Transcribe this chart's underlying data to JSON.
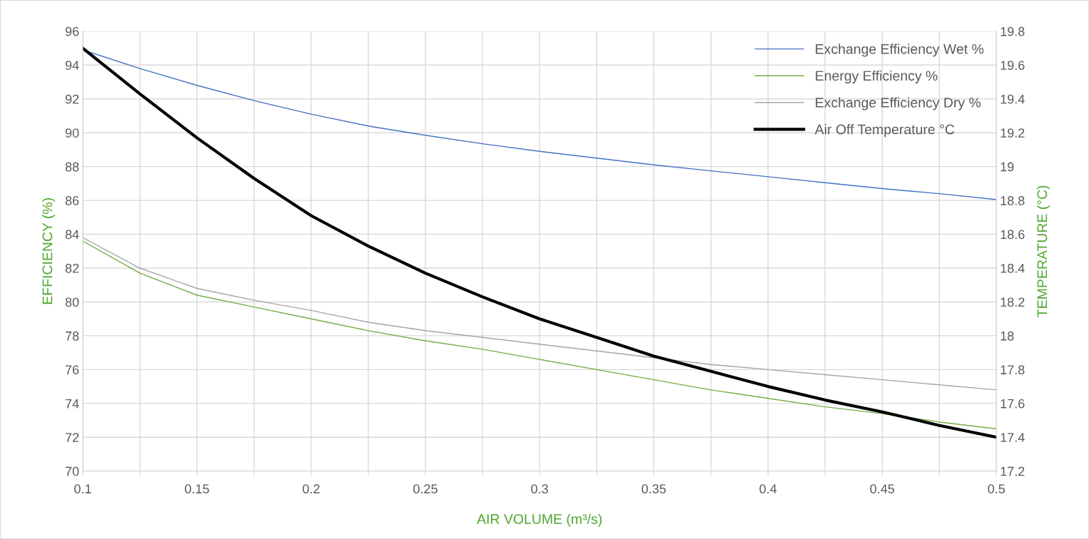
{
  "chart_data": {
    "type": "line",
    "xlabel": "AIR VOLUME (m³/s)",
    "ylabel": "EFFICIENCY (%)",
    "y2label": "TEMPERATURE (°C)",
    "x": [
      0.1,
      0.125,
      0.15,
      0.175,
      0.2,
      0.225,
      0.25,
      0.275,
      0.3,
      0.325,
      0.35,
      0.375,
      0.4,
      0.425,
      0.45,
      0.475,
      0.5
    ],
    "series": [
      {
        "name": "Exchange Efficiency Wet %",
        "color": "#4472c4",
        "values": [
          94.9,
          93.8,
          92.8,
          91.9,
          91.1,
          90.4,
          89.85,
          89.35,
          88.9,
          88.5,
          88.1,
          87.75,
          87.4,
          87.05,
          86.7,
          86.4,
          86.05
        ]
      },
      {
        "name": "Energy Efficiency %",
        "color": "#70ad47",
        "values": [
          83.6,
          81.7,
          80.4,
          79.7,
          79.0,
          78.3,
          77.7,
          77.2,
          76.6,
          76.0,
          75.4,
          74.8,
          74.3,
          73.8,
          73.4,
          72.9,
          72.5
        ]
      },
      {
        "name": "Exchange Efficiency Dry %",
        "color": "#a5a5a5",
        "values": [
          83.8,
          82.0,
          80.8,
          80.1,
          79.5,
          78.8,
          78.3,
          77.9,
          77.5,
          77.1,
          76.7,
          76.3,
          76.0,
          75.7,
          75.4,
          75.1,
          74.8
        ]
      },
      {
        "name": "Air Off Temperature °C",
        "color": "#000000",
        "axis": "y2",
        "values": [
          19.7,
          19.43,
          19.17,
          18.93,
          18.71,
          18.53,
          18.37,
          18.23,
          18.1,
          17.99,
          17.88,
          17.79,
          17.7,
          17.62,
          17.55,
          17.47,
          17.4
        ]
      }
    ],
    "xlim": [
      0.1,
      0.5
    ],
    "xticks": [
      0.1,
      {
        "value": 0.125,
        "label": null
      },
      0.15,
      {
        "value": 0.175,
        "label": null
      },
      0.2,
      {
        "value": 0.225,
        "label": null
      },
      0.25,
      {
        "value": 0.275,
        "label": null
      },
      0.3,
      {
        "value": 0.325,
        "label": null
      },
      0.35,
      {
        "value": 0.375,
        "label": null
      },
      0.4,
      {
        "value": 0.425,
        "label": null
      },
      0.45,
      {
        "value": 0.475,
        "label": null
      },
      0.5
    ],
    "ylim": [
      70,
      96
    ],
    "yticks": [
      70,
      72,
      74,
      76,
      78,
      80,
      82,
      84,
      86,
      88,
      90,
      92,
      94,
      96
    ],
    "y2lim": [
      17.2,
      19.8
    ],
    "y2ticks": [
      17.2,
      17.4,
      17.6,
      17.8,
      18,
      18.2,
      18.4,
      18.6,
      18.8,
      19,
      19.2,
      19.4,
      19.6,
      19.8
    ],
    "grid": true,
    "legend": "top right",
    "marker": "none",
    "line_style": "solid"
  }
}
